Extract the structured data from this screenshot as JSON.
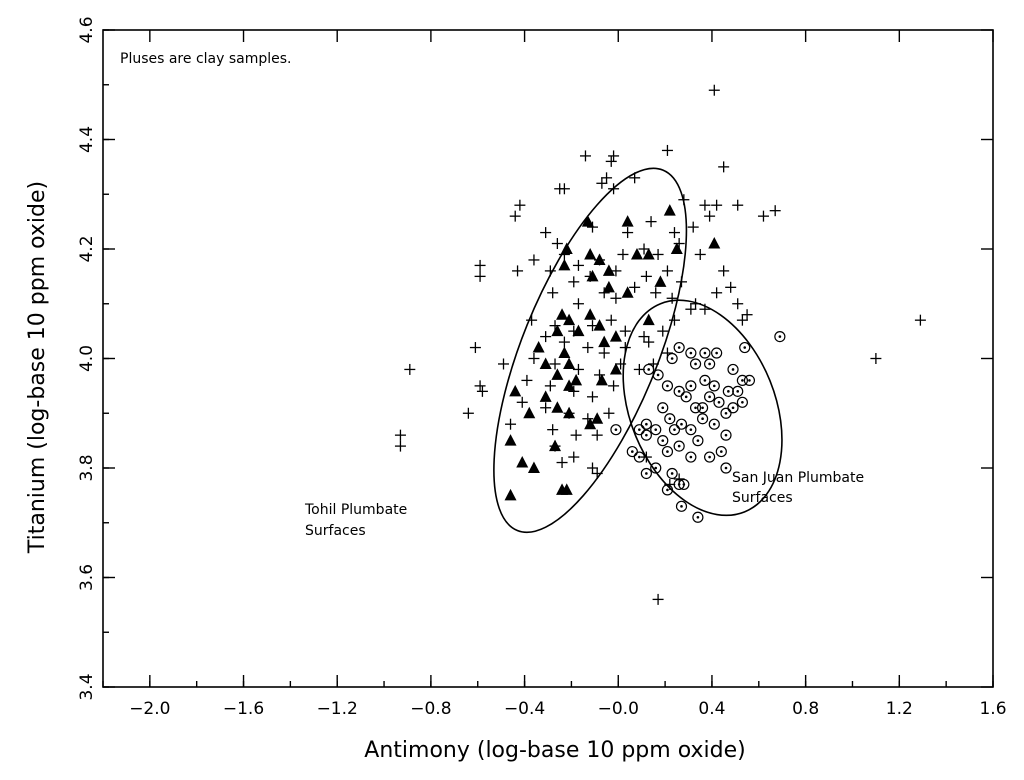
{
  "chart_data": {
    "type": "scatter",
    "title": "",
    "xlabel": "Antimony (log-base 10 ppm oxide)",
    "ylabel": "Titanium (log-base 10 ppm oxide)",
    "xlim": [
      -2.2,
      1.6
    ],
    "ylim": [
      3.4,
      4.6
    ],
    "x_ticks": [
      -2.0,
      -1.6,
      -1.2,
      -0.8,
      -0.4,
      0.0,
      0.4,
      0.8,
      1.2,
      1.6
    ],
    "x_tick_labels": [
      "−2.0",
      "−1.6",
      "−1.2",
      "−0.8",
      "−0.4",
      "−0.0",
      "0.4",
      "0.8",
      "1.2",
      "1.6"
    ],
    "y_ticks": [
      3.4,
      3.6,
      3.8,
      4.0,
      4.2,
      4.4,
      4.6
    ],
    "y_tick_labels": [
      "3.4",
      "3.6",
      "3.8",
      "4.0",
      "4.2",
      "4.4",
      "4.6"
    ],
    "grid": false,
    "annotations": {
      "note": "Pluses are clay samples.",
      "tohil_label_line1": "Tohil Plumbate",
      "tohil_label_line2": "Surfaces",
      "sanjuan_label_line1": "San Juan Plumbate",
      "sanjuan_label_line2": "Surfaces"
    },
    "ellipses": [
      {
        "group": "Tohil Plumbate Surfaces",
        "cx": -0.12,
        "cy": 4.015,
        "rx": 0.29,
        "ry": 0.355,
        "angle": 22
      },
      {
        "group": "San Juan Plumbate Surfaces",
        "cx": 0.36,
        "cy": 3.91,
        "rx": 0.31,
        "ry": 0.205,
        "angle": -22
      }
    ],
    "series": [
      {
        "marker": "plus",
        "points": [
          [
            0.41,
            4.49
          ],
          [
            -0.14,
            4.37
          ],
          [
            -0.02,
            4.37
          ],
          [
            0.21,
            4.38
          ],
          [
            -0.03,
            4.36
          ],
          [
            0.45,
            4.35
          ],
          [
            -0.25,
            4.31
          ],
          [
            -0.23,
            4.31
          ],
          [
            -0.07,
            4.32
          ],
          [
            -0.05,
            4.33
          ],
          [
            -0.02,
            4.31
          ],
          [
            0.07,
            4.33
          ],
          [
            -0.42,
            4.28
          ],
          [
            -0.44,
            4.26
          ],
          [
            0.28,
            4.29
          ],
          [
            0.37,
            4.28
          ],
          [
            0.39,
            4.26
          ],
          [
            0.42,
            4.28
          ],
          [
            0.51,
            4.28
          ],
          [
            0.62,
            4.26
          ],
          [
            0.67,
            4.27
          ],
          [
            -0.31,
            4.23
          ],
          [
            -0.26,
            4.21
          ],
          [
            -0.11,
            4.24
          ],
          [
            0.04,
            4.23
          ],
          [
            0.14,
            4.25
          ],
          [
            0.24,
            4.23
          ],
          [
            0.32,
            4.24
          ],
          [
            -0.36,
            4.18
          ],
          [
            -0.23,
            4.19
          ],
          [
            -0.17,
            4.17
          ],
          [
            -0.08,
            4.18
          ],
          [
            0.02,
            4.19
          ],
          [
            0.11,
            4.2
          ],
          [
            0.17,
            4.19
          ],
          [
            0.26,
            4.21
          ],
          [
            0.35,
            4.19
          ],
          [
            -0.59,
            4.17
          ],
          [
            -0.59,
            4.15
          ],
          [
            -0.43,
            4.16
          ],
          [
            -0.29,
            4.16
          ],
          [
            -0.19,
            4.14
          ],
          [
            -0.12,
            4.15
          ],
          [
            -0.01,
            4.16
          ],
          [
            0.12,
            4.15
          ],
          [
            0.21,
            4.16
          ],
          [
            0.27,
            4.14
          ],
          [
            0.45,
            4.16
          ],
          [
            -0.28,
            4.12
          ],
          [
            -0.17,
            4.1
          ],
          [
            -0.06,
            4.12
          ],
          [
            -0.01,
            4.11
          ],
          [
            0.07,
            4.13
          ],
          [
            0.16,
            4.12
          ],
          [
            0.23,
            4.11
          ],
          [
            0.33,
            4.1
          ],
          [
            0.42,
            4.12
          ],
          [
            0.48,
            4.13
          ],
          [
            -0.37,
            4.07
          ],
          [
            -0.27,
            4.06
          ],
          [
            -0.19,
            4.05
          ],
          [
            -0.11,
            4.06
          ],
          [
            -0.03,
            4.07
          ],
          [
            0.03,
            4.05
          ],
          [
            0.11,
            4.04
          ],
          [
            0.19,
            4.05
          ],
          [
            0.24,
            4.07
          ],
          [
            0.31,
            4.09
          ],
          [
            0.37,
            4.09
          ],
          [
            0.51,
            4.1
          ],
          [
            0.53,
            4.07
          ],
          [
            0.55,
            4.08
          ],
          [
            -0.31,
            4.04
          ],
          [
            -0.23,
            4.03
          ],
          [
            -0.13,
            4.02
          ],
          [
            -0.06,
            4.01
          ],
          [
            0.03,
            4.02
          ],
          [
            0.13,
            4.03
          ],
          [
            0.21,
            4.01
          ],
          [
            -0.61,
            4.02
          ],
          [
            -0.36,
            4.0
          ],
          [
            -0.27,
            3.99
          ],
          [
            -0.17,
            3.98
          ],
          [
            -0.08,
            3.97
          ],
          [
            0.01,
            3.99
          ],
          [
            0.09,
            3.98
          ],
          [
            0.15,
            3.99
          ],
          [
            -0.49,
            3.99
          ],
          [
            -0.89,
            3.98
          ],
          [
            -0.59,
            3.95
          ],
          [
            -0.58,
            3.94
          ],
          [
            -0.39,
            3.96
          ],
          [
            -0.29,
            3.95
          ],
          [
            -0.19,
            3.94
          ],
          [
            -0.11,
            3.93
          ],
          [
            -0.02,
            3.95
          ],
          [
            -0.64,
            3.9
          ],
          [
            -0.41,
            3.92
          ],
          [
            -0.31,
            3.91
          ],
          [
            -0.21,
            3.9
          ],
          [
            -0.13,
            3.89
          ],
          [
            -0.04,
            3.9
          ],
          [
            -0.28,
            3.87
          ],
          [
            -0.18,
            3.86
          ],
          [
            -0.09,
            3.86
          ],
          [
            -0.46,
            3.88
          ],
          [
            -0.93,
            3.86
          ],
          [
            -0.93,
            3.84
          ],
          [
            -0.27,
            3.84
          ],
          [
            -0.19,
            3.82
          ],
          [
            -0.11,
            3.8
          ],
          [
            -0.09,
            3.79
          ],
          [
            -0.24,
            3.81
          ],
          [
            1.29,
            4.07
          ],
          [
            1.1,
            4.0
          ],
          [
            0.17,
            3.56
          ],
          [
            0.22,
            3.77
          ],
          [
            0.26,
            3.78
          ],
          [
            0.12,
            3.82
          ]
        ]
      },
      {
        "marker": "filled-triangle",
        "points": [
          [
            -0.13,
            4.25
          ],
          [
            0.04,
            4.25
          ],
          [
            0.22,
            4.27
          ],
          [
            -0.22,
            4.2
          ],
          [
            -0.12,
            4.19
          ],
          [
            -0.08,
            4.18
          ],
          [
            0.08,
            4.19
          ],
          [
            0.13,
            4.19
          ],
          [
            -0.23,
            4.17
          ],
          [
            -0.11,
            4.15
          ],
          [
            -0.04,
            4.16
          ],
          [
            0.25,
            4.2
          ],
          [
            0.41,
            4.21
          ],
          [
            -0.04,
            4.13
          ],
          [
            0.04,
            4.12
          ],
          [
            0.18,
            4.14
          ],
          [
            -0.24,
            4.08
          ],
          [
            -0.21,
            4.07
          ],
          [
            -0.12,
            4.08
          ],
          [
            -0.08,
            4.06
          ],
          [
            0.13,
            4.07
          ],
          [
            -0.26,
            4.05
          ],
          [
            -0.17,
            4.05
          ],
          [
            -0.01,
            4.04
          ],
          [
            -0.34,
            4.02
          ],
          [
            -0.23,
            4.01
          ],
          [
            -0.06,
            4.03
          ],
          [
            -0.31,
            3.99
          ],
          [
            -0.21,
            3.99
          ],
          [
            -0.26,
            3.97
          ],
          [
            -0.01,
            3.98
          ],
          [
            -0.44,
            3.94
          ],
          [
            -0.21,
            3.95
          ],
          [
            -0.07,
            3.96
          ],
          [
            -0.31,
            3.93
          ],
          [
            -0.26,
            3.91
          ],
          [
            -0.38,
            3.9
          ],
          [
            -0.21,
            3.9
          ],
          [
            -0.12,
            3.88
          ],
          [
            -0.09,
            3.89
          ],
          [
            -0.46,
            3.85
          ],
          [
            -0.27,
            3.84
          ],
          [
            -0.41,
            3.81
          ],
          [
            -0.36,
            3.8
          ],
          [
            -0.22,
            3.76
          ],
          [
            -0.24,
            3.76
          ],
          [
            -0.46,
            3.75
          ],
          [
            -0.18,
            3.96
          ]
        ]
      },
      {
        "marker": "dotted-circle",
        "points": [
          [
            0.69,
            4.04
          ],
          [
            0.23,
            4.0
          ],
          [
            0.26,
            4.02
          ],
          [
            0.31,
            4.01
          ],
          [
            0.37,
            4.01
          ],
          [
            0.42,
            4.01
          ],
          [
            0.54,
            4.02
          ],
          [
            0.13,
            3.98
          ],
          [
            0.17,
            3.97
          ],
          [
            0.33,
            3.99
          ],
          [
            0.39,
            3.99
          ],
          [
            0.49,
            3.98
          ],
          [
            0.53,
            3.96
          ],
          [
            0.56,
            3.96
          ],
          [
            0.21,
            3.95
          ],
          [
            0.26,
            3.94
          ],
          [
            0.31,
            3.95
          ],
          [
            0.41,
            3.95
          ],
          [
            0.47,
            3.94
          ],
          [
            0.29,
            3.93
          ],
          [
            0.39,
            3.93
          ],
          [
            0.53,
            3.92
          ],
          [
            0.19,
            3.91
          ],
          [
            0.33,
            3.91
          ],
          [
            0.43,
            3.92
          ],
          [
            0.49,
            3.91
          ],
          [
            0.22,
            3.89
          ],
          [
            0.27,
            3.88
          ],
          [
            0.36,
            3.89
          ],
          [
            0.46,
            3.9
          ],
          [
            0.12,
            3.88
          ],
          [
            0.16,
            3.87
          ],
          [
            0.24,
            3.87
          ],
          [
            0.31,
            3.87
          ],
          [
            0.41,
            3.88
          ],
          [
            0.09,
            3.87
          ],
          [
            0.12,
            3.86
          ],
          [
            0.19,
            3.85
          ],
          [
            0.26,
            3.84
          ],
          [
            0.34,
            3.85
          ],
          [
            0.46,
            3.86
          ],
          [
            0.21,
            3.83
          ],
          [
            0.31,
            3.82
          ],
          [
            0.39,
            3.82
          ],
          [
            0.44,
            3.83
          ],
          [
            0.06,
            3.83
          ],
          [
            0.09,
            3.82
          ],
          [
            0.16,
            3.8
          ],
          [
            0.23,
            3.79
          ],
          [
            0.46,
            3.8
          ],
          [
            0.12,
            3.79
          ],
          [
            0.26,
            3.77
          ],
          [
            0.28,
            3.77
          ],
          [
            0.21,
            3.76
          ],
          [
            0.27,
            3.73
          ],
          [
            0.34,
            3.71
          ],
          [
            0.36,
            3.91
          ],
          [
            0.51,
            3.94
          ],
          [
            -0.01,
            3.87
          ],
          [
            0.37,
            3.96
          ]
        ]
      }
    ]
  }
}
